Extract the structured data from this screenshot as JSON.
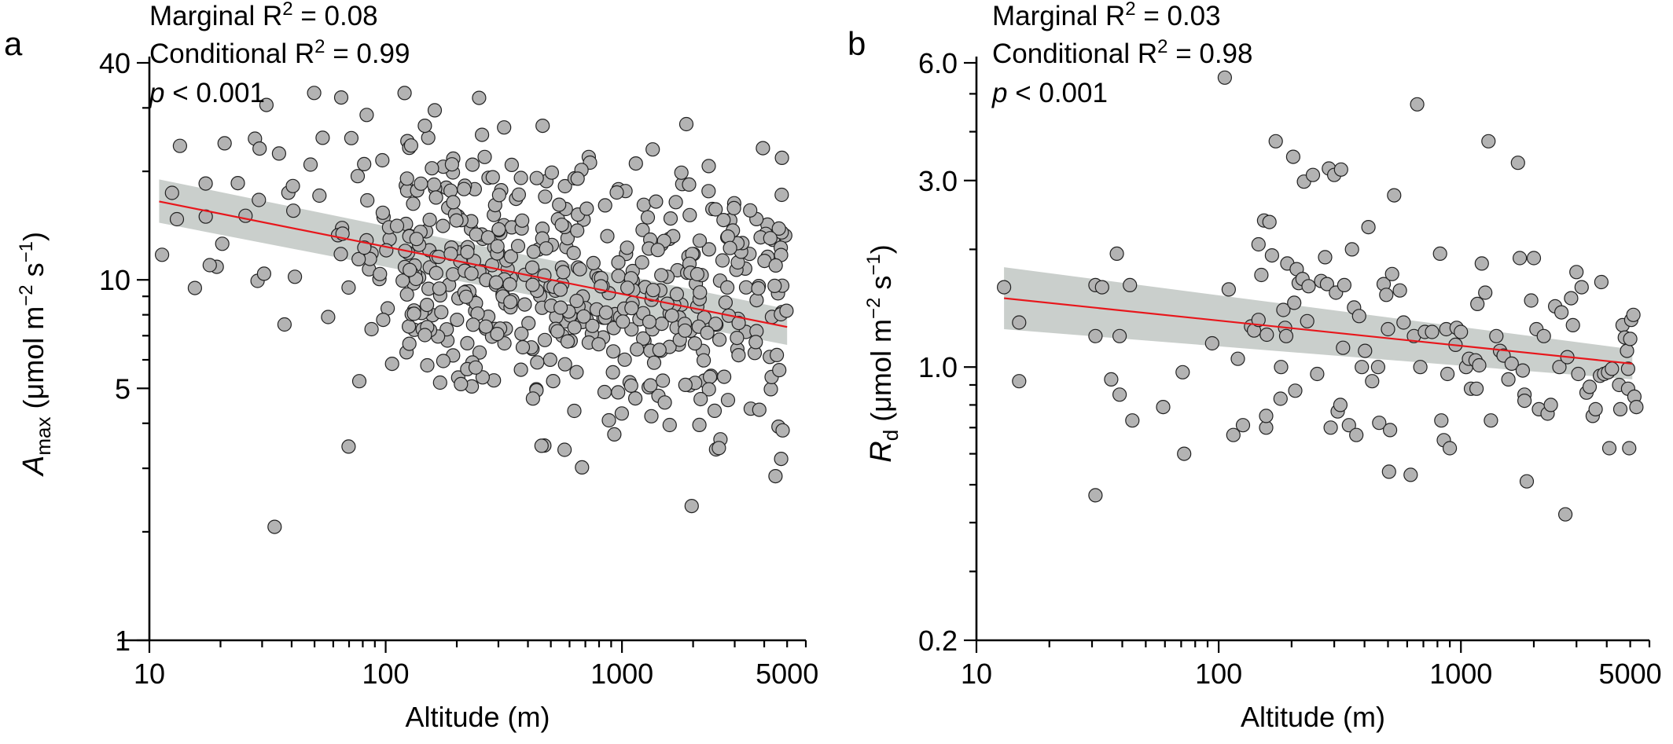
{
  "chart_data": [
    {
      "type": "scatter",
      "panel_label": "a",
      "xlabel": "Altitude (m)",
      "ylabel": {
        "symbol": "A",
        "subscript": "max",
        "unit_prefix": " (μmol m",
        "exp1": "−2",
        "unit_mid": " s",
        "exp2": "−1",
        "unit_suffix": ")"
      },
      "x_scale": "log",
      "y_scale": "log",
      "xlim": [
        10,
        6000
      ],
      "ylim": [
        1,
        40
      ],
      "x_ticks": [
        10,
        100,
        1000,
        5000
      ],
      "x_tick_labels": [
        "10",
        "100",
        "1000",
        "5000"
      ],
      "y_ticks": [
        1,
        5,
        10,
        40
      ],
      "y_tick_labels": [
        "1",
        "5",
        "10",
        "40"
      ],
      "annotations": {
        "marginal_prefix": "Marginal R",
        "marginal_sup": "2",
        "marginal_suffix": " = 0.08",
        "conditional_prefix": "Conditional R",
        "conditional_sup": "2",
        "conditional_suffix": "  = 0.99",
        "p_symbol": "p",
        "p_text": " < 0.001"
      },
      "fit": {
        "x": [
          11,
          5000
        ],
        "y": [
          16.5,
          7.4
        ]
      },
      "ci_band": {
        "x": [
          11,
          5000
        ],
        "upper": [
          19.0,
          8.3
        ],
        "lower": [
          14.4,
          6.6
        ]
      },
      "n_points": 560
    },
    {
      "type": "scatter",
      "panel_label": "b",
      "xlabel": "Altitude (m)",
      "ylabel": {
        "symbol": "R",
        "subscript": "d",
        "unit_prefix": " (μmol m",
        "exp1": "−2",
        "unit_mid": " s",
        "exp2": "−1",
        "unit_suffix": ")"
      },
      "x_scale": "log",
      "y_scale": "log",
      "xlim": [
        10,
        6000
      ],
      "ylim": [
        0.2,
        6.0
      ],
      "x_ticks": [
        10,
        100,
        1000,
        5000
      ],
      "x_tick_labels": [
        "10",
        "100",
        "1000",
        "5000"
      ],
      "y_ticks": [
        0.2,
        1.0,
        3.0,
        6.0
      ],
      "y_tick_labels": [
        "0.2",
        "1.0",
        "3.0",
        "6.0"
      ],
      "annotations": {
        "marginal_prefix": "Marginal R",
        "marginal_sup": "2",
        "marginal_suffix": " = 0.03",
        "conditional_prefix": "Conditional R",
        "conditional_sup": "2",
        "conditional_suffix": "  = 0.98",
        "p_symbol": "p",
        "p_text": " < 0.001"
      },
      "fit": {
        "x": [
          13,
          5100
        ],
        "y": [
          1.5,
          1.02
        ]
      },
      "ci_band": {
        "x": [
          13,
          5100
        ],
        "upper": [
          1.8,
          1.11
        ],
        "lower": [
          1.25,
          0.93
        ]
      },
      "points": [
        [
          13,
          1.6
        ],
        [
          15,
          1.3
        ],
        [
          15,
          0.92
        ],
        [
          31,
          1.2
        ],
        [
          31,
          1.62
        ],
        [
          33,
          1.6
        ],
        [
          31,
          0.47
        ],
        [
          36,
          0.93
        ],
        [
          38,
          1.95
        ],
        [
          39,
          1.2
        ],
        [
          39,
          0.85
        ],
        [
          43,
          1.62
        ],
        [
          44,
          0.73
        ],
        [
          59,
          0.79
        ],
        [
          71,
          0.97
        ],
        [
          72,
          0.6
        ],
        [
          94,
          1.15
        ],
        [
          106,
          5.5
        ],
        [
          110,
          1.58
        ],
        [
          115,
          0.67
        ],
        [
          120,
          1.05
        ],
        [
          126,
          0.71
        ],
        [
          136,
          1.27
        ],
        [
          140,
          1.24
        ],
        [
          146,
          1.32
        ],
        [
          146,
          2.06
        ],
        [
          150,
          1.72
        ],
        [
          154,
          2.37
        ],
        [
          157,
          0.7
        ],
        [
          157,
          0.75
        ],
        [
          158,
          1.21
        ],
        [
          162,
          2.35
        ],
        [
          166,
          1.93
        ],
        [
          172,
          3.78
        ],
        [
          180,
          0.83
        ],
        [
          181,
          1.0
        ],
        [
          185,
          1.4
        ],
        [
          188,
          1.26
        ],
        [
          190,
          1.2
        ],
        [
          192,
          1.84
        ],
        [
          203,
          3.45
        ],
        [
          205,
          1.46
        ],
        [
          207,
          0.87
        ],
        [
          210,
          1.78
        ],
        [
          214,
          1.64
        ],
        [
          222,
          1.68
        ],
        [
          225,
          2.98
        ],
        [
          232,
          1.31
        ],
        [
          235,
          1.61
        ],
        [
          245,
          3.1
        ],
        [
          255,
          0.96
        ],
        [
          265,
          1.66
        ],
        [
          275,
          1.91
        ],
        [
          280,
          1.63
        ],
        [
          285,
          3.22
        ],
        [
          290,
          0.7
        ],
        [
          300,
          3.1
        ],
        [
          305,
          1.55
        ],
        [
          310,
          0.77
        ],
        [
          318,
          0.8
        ],
        [
          320,
          3.2
        ],
        [
          326,
          1.12
        ],
        [
          330,
          1.62
        ],
        [
          345,
          0.71
        ],
        [
          355,
          2.0
        ],
        [
          362,
          1.42
        ],
        [
          370,
          0.67
        ],
        [
          380,
          1.35
        ],
        [
          390,
          1.0
        ],
        [
          402,
          1.1
        ],
        [
          415,
          2.28
        ],
        [
          430,
          0.92
        ],
        [
          455,
          1.0
        ],
        [
          460,
          0.72
        ],
        [
          480,
          1.63
        ],
        [
          492,
          1.53
        ],
        [
          500,
          1.25
        ],
        [
          505,
          0.54
        ],
        [
          510,
          0.69
        ],
        [
          520,
          1.73
        ],
        [
          530,
          2.75
        ],
        [
          560,
          1.57
        ],
        [
          580,
          1.3
        ],
        [
          620,
          0.53
        ],
        [
          640,
          1.2
        ],
        [
          660,
          4.7
        ],
        [
          680,
          1.0
        ],
        [
          710,
          1.23
        ],
        [
          760,
          1.23
        ],
        [
          820,
          1.95
        ],
        [
          830,
          0.73
        ],
        [
          850,
          0.65
        ],
        [
          870,
          1.25
        ],
        [
          880,
          0.96
        ],
        [
          900,
          0.62
        ],
        [
          950,
          1.14
        ],
        [
          960,
          1.26
        ],
        [
          1000,
          1.23
        ],
        [
          1050,
          1.0
        ],
        [
          1080,
          1.05
        ],
        [
          1100,
          0.88
        ],
        [
          1150,
          1.04
        ],
        [
          1160,
          0.88
        ],
        [
          1170,
          1.45
        ],
        [
          1190,
          1.01
        ],
        [
          1220,
          1.84
        ],
        [
          1260,
          1.55
        ],
        [
          1300,
          3.78
        ],
        [
          1330,
          0.73
        ],
        [
          1400,
          1.2
        ],
        [
          1450,
          1.1
        ],
        [
          1500,
          1.07
        ],
        [
          1570,
          0.93
        ],
        [
          1620,
          1.02
        ],
        [
          1720,
          3.33
        ],
        [
          1750,
          1.9
        ],
        [
          1800,
          0.98
        ],
        [
          1830,
          0.85
        ],
        [
          1830,
          0.82
        ],
        [
          1870,
          0.51
        ],
        [
          1950,
          1.48
        ],
        [
          2000,
          1.9
        ],
        [
          2050,
          1.25
        ],
        [
          2100,
          0.78
        ],
        [
          2200,
          1.2
        ],
        [
          2280,
          0.76
        ],
        [
          2350,
          0.8
        ],
        [
          2450,
          1.43
        ],
        [
          2550,
          1.0
        ],
        [
          2600,
          1.38
        ],
        [
          2700,
          0.42
        ],
        [
          2750,
          1.06
        ],
        [
          2850,
          1.5
        ],
        [
          2900,
          1.28
        ],
        [
          3000,
          1.75
        ],
        [
          3050,
          0.96
        ],
        [
          3150,
          1.6
        ],
        [
          3300,
          0.86
        ],
        [
          3400,
          0.89
        ],
        [
          3500,
          0.75
        ],
        [
          3600,
          0.78
        ],
        [
          3750,
          0.95
        ],
        [
          3800,
          1.65
        ],
        [
          3900,
          0.96
        ],
        [
          4050,
          0.97
        ],
        [
          4100,
          0.62
        ],
        [
          4200,
          0.99
        ],
        [
          4500,
          0.9
        ],
        [
          4550,
          0.78
        ],
        [
          4650,
          1.28
        ],
        [
          4750,
          1.19
        ],
        [
          4850,
          1.1
        ],
        [
          4900,
          0.99
        ],
        [
          4900,
          0.88
        ],
        [
          4950,
          0.62
        ],
        [
          5000,
          1.18
        ],
        [
          5050,
          1.32
        ],
        [
          5150,
          1.36
        ],
        [
          5200,
          0.84
        ],
        [
          5300,
          0.79
        ]
      ]
    }
  ]
}
